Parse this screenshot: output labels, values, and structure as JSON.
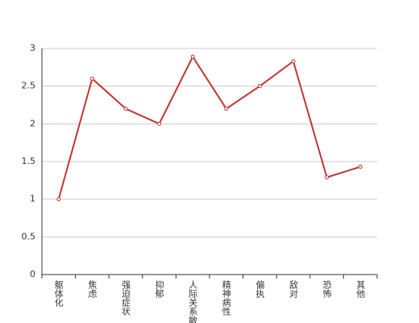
{
  "chart_data": {
    "type": "line",
    "categories": [
      "躯体化",
      "焦虑",
      "强迫症状",
      "抑郁",
      "人际关系敏感",
      "精神病性",
      "偏执",
      "敌对",
      "恐怖",
      "其他"
    ],
    "series": [
      {
        "color": "#c23531",
        "values": [
          1,
          2.6,
          2.2,
          2.0,
          2.89,
          2.2,
          2.5,
          2.83,
          1.29,
          1.43
        ]
      }
    ],
    "ylim": [
      0,
      3
    ],
    "yticks": [
      0,
      0.5,
      1,
      1.5,
      2,
      2.5,
      3
    ],
    "grid": true
  }
}
